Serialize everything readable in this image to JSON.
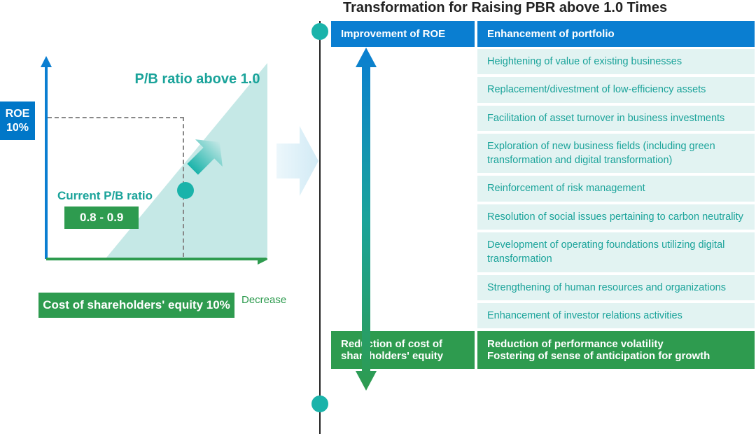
{
  "chart": {
    "roe_label_line1": "ROE",
    "roe_label_line2": "10%",
    "pbr_above_label": "P/B ratio above 1.0",
    "current_label": "Current P/B ratio",
    "current_value": "0.8 - 0.9",
    "cost_equity_label": "Cost of shareholders' equity 10%",
    "decrease_label": "Decrease",
    "axis_color": "#0a7ed1",
    "triangle_color": "#c5e8e6",
    "teal": "#1aa39a",
    "green": "#2e9b4f"
  },
  "right": {
    "title": "Transformation for Raising PBR above 1.0 Times",
    "header_left": "Improvement of ROE",
    "header_right": "Enhancement of portfolio",
    "items": [
      "Heightening of value of existing businesses",
      "Replacement/divestment of low-efficiency assets",
      "Facilitation of asset turnover in business investments",
      "Exploration of new business fields (including green transformation and digital transformation)",
      "Reinforcement of risk management",
      "Resolution of social issues pertaining to carbon neutrality",
      "Development of operating foundations utilizing digital transformation",
      "Strengthening of human resources and organizations",
      "Enhancement of investor relations activities"
    ],
    "footer_left": "Reduction of cost of shareholders' equity",
    "footer_right_line1": "Reduction of performance volatility",
    "footer_right_line2": "Fostering of sense of anticipation for growth",
    "header_color": "#0a7ed1",
    "footer_color": "#2e9b4f",
    "item_bg": "#e2f3f2",
    "item_text": "#1aa39a",
    "arrow_top_color": "#0a7ed1",
    "arrow_bottom_color": "#2e9b4f"
  }
}
